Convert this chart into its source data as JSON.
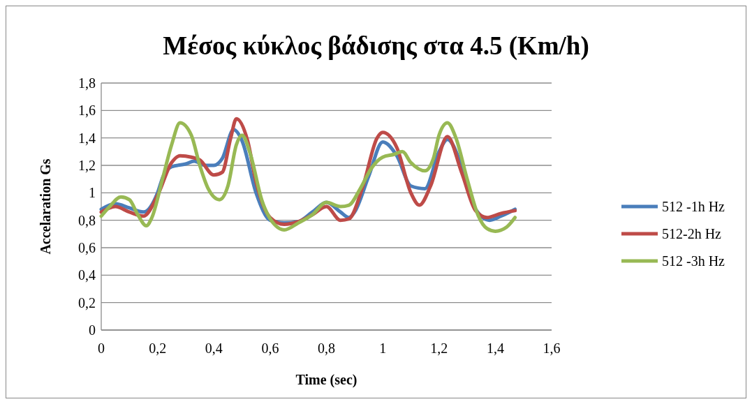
{
  "chart_data": {
    "type": "line",
    "title": "Μέσος κύκλος βάδισης στα 4.5 (Km/h)",
    "xlabel": "Time (sec)",
    "ylabel": "Accelaration Gs",
    "xlim": [
      0,
      1.6
    ],
    "xticks": [
      {
        "value": 0,
        "label": "0"
      },
      {
        "value": 0.2,
        "label": "0,2"
      },
      {
        "value": 0.4,
        "label": "0,4"
      },
      {
        "value": 0.6,
        "label": "0,6"
      },
      {
        "value": 0.8,
        "label": "0,8"
      },
      {
        "value": 1,
        "label": "1"
      },
      {
        "value": 1.2,
        "label": "1,2"
      },
      {
        "value": 1.4,
        "label": "1,4"
      },
      {
        "value": 1.6,
        "label": "1,6"
      }
    ],
    "ylim": [
      0,
      1.8
    ],
    "yticks": [
      {
        "value": 0,
        "label": "0"
      },
      {
        "value": 0.2,
        "label": "0,2"
      },
      {
        "value": 0.4,
        "label": "0,4"
      },
      {
        "value": 0.6,
        "label": "0,6"
      },
      {
        "value": 0.8,
        "label": "0,8"
      },
      {
        "value": 1,
        "label": "1"
      },
      {
        "value": 1.2,
        "label": "1,2"
      },
      {
        "value": 1.4,
        "label": "1,4"
      },
      {
        "value": 1.6,
        "label": "1,6"
      },
      {
        "value": 1.8,
        "label": "1,8"
      }
    ],
    "grid": "y",
    "legend": "right",
    "marker": "none",
    "line_style": "solid",
    "series": [
      {
        "name": "512 -1h Hz",
        "color": "#4a7ebb",
        "x": [
          0,
          0.05,
          0.1,
          0.15,
          0.2,
          0.22,
          0.25,
          0.3,
          0.33,
          0.37,
          0.4,
          0.43,
          0.47,
          0.5,
          0.55,
          0.6,
          0.65,
          0.7,
          0.75,
          0.8,
          0.85,
          0.88,
          0.9,
          0.95,
          1,
          1.05,
          1.1,
          1.15,
          1.2,
          1.23,
          1.28,
          1.33,
          1.38,
          1.42,
          1.47
        ],
        "values": [
          0.88,
          0.92,
          0.89,
          0.86,
          1,
          1.12,
          1.19,
          1.21,
          1.23,
          1.2,
          1.2,
          1.25,
          1.46,
          1.38,
          1,
          0.8,
          0.78,
          0.79,
          0.86,
          0.93,
          0.86,
          0.82,
          0.86,
          1.12,
          1.37,
          1.27,
          1.05,
          1.03,
          1.3,
          1.39,
          1.2,
          0.88,
          0.8,
          0.83,
          0.88
        ]
      },
      {
        "name": "512-2h Hz",
        "color": "#be4b48",
        "x": [
          0,
          0.05,
          0.1,
          0.15,
          0.2,
          0.25,
          0.28,
          0.32,
          0.35,
          0.4,
          0.43,
          0.46,
          0.48,
          0.52,
          0.55,
          0.6,
          0.65,
          0.7,
          0.75,
          0.8,
          0.85,
          0.88,
          0.93,
          0.98,
          1,
          1.05,
          1.1,
          1.13,
          1.17,
          1.23,
          1.28,
          1.33,
          1.37,
          1.42,
          1.47
        ],
        "values": [
          0.86,
          0.9,
          0.86,
          0.83,
          0.98,
          1.22,
          1.27,
          1.26,
          1.24,
          1.13,
          1.15,
          1.4,
          1.54,
          1.38,
          1.08,
          0.82,
          0.77,
          0.79,
          0.84,
          0.9,
          0.8,
          0.81,
          1.05,
          1.4,
          1.44,
          1.33,
          1,
          0.91,
          1.05,
          1.41,
          1.15,
          0.87,
          0.82,
          0.85,
          0.87
        ]
      },
      {
        "name": "512 -3h Hz",
        "color": "#98b954",
        "x": [
          0,
          0.03,
          0.07,
          0.1,
          0.13,
          0.16,
          0.18,
          0.22,
          0.25,
          0.28,
          0.32,
          0.35,
          0.38,
          0.42,
          0.45,
          0.48,
          0.5,
          0.53,
          0.57,
          0.62,
          0.65,
          0.7,
          0.75,
          0.8,
          0.85,
          0.88,
          0.92,
          0.96,
          1,
          1.04,
          1.07,
          1.1,
          1.15,
          1.18,
          1.2,
          1.23,
          1.26,
          1.3,
          1.34,
          1.37,
          1.4,
          1.44,
          1.47
        ],
        "values": [
          0.83,
          0.9,
          0.97,
          0.95,
          0.84,
          0.76,
          0.82,
          1.12,
          1.35,
          1.51,
          1.42,
          1.2,
          1.03,
          0.95,
          1.05,
          1.35,
          1.42,
          1.28,
          0.95,
          0.76,
          0.73,
          0.78,
          0.84,
          0.93,
          0.9,
          0.91,
          1.03,
          1.18,
          1.26,
          1.28,
          1.3,
          1.22,
          1.16,
          1.25,
          1.42,
          1.51,
          1.4,
          1.1,
          0.83,
          0.74,
          0.72,
          0.75,
          0.82
        ]
      }
    ]
  }
}
